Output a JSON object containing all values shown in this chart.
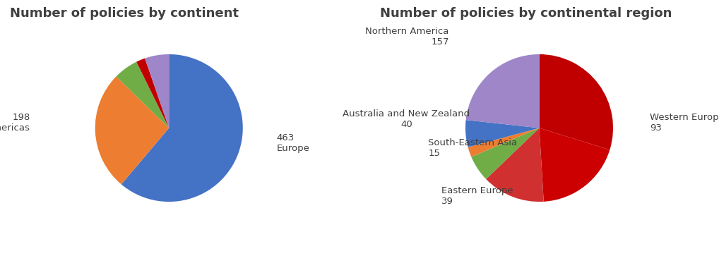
{
  "chart1_title": "Number of policies by continent",
  "chart1_values": [
    463,
    198,
    41,
    15,
    40
  ],
  "chart1_colors": [
    "#4472C4",
    "#ED7D31",
    "#70AD47",
    "#C00000",
    "#9E86C8"
  ],
  "chart2_title": "Number of policies by continental region",
  "chart2_values": [
    201,
    130,
    93,
    39,
    15,
    40,
    157
  ],
  "chart2_colors": [
    "#C00000",
    "#CC0000",
    "#D03030",
    "#70AD47",
    "#ED7D31",
    "#4472C4",
    "#9E86C8"
  ],
  "bg_color": "#FFFFFF",
  "title_fontsize": 13,
  "label_fontsize": 9.5
}
